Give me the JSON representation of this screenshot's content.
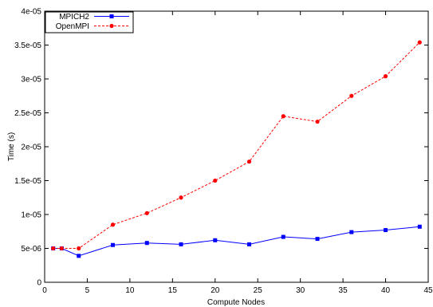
{
  "chart_data": {
    "type": "line",
    "title": "",
    "xlabel": "Compute Nodes",
    "ylabel": "Time (s)",
    "xlim": [
      0,
      45
    ],
    "ylim": [
      0,
      4e-05
    ],
    "grid": false,
    "legend_position": "top-left",
    "x_ticks": [
      0,
      5,
      10,
      15,
      20,
      25,
      30,
      35,
      40,
      45
    ],
    "x_tick_labels": [
      "0",
      "5",
      "10",
      "15",
      "20",
      "25",
      "30",
      "35",
      "40",
      "45"
    ],
    "y_ticks": [
      0,
      5e-06,
      1e-05,
      1.5e-05,
      2e-05,
      2.5e-05,
      3e-05,
      3.5e-05,
      4e-05
    ],
    "y_tick_labels": [
      "0",
      "5e-06",
      "1e-05",
      "1.5e-05",
      "2e-05",
      "2.5e-05",
      "3e-05",
      "3.5e-05",
      "4e-05"
    ],
    "series": [
      {
        "name": "MPICH2",
        "color": "#0000ff",
        "line_style": "solid",
        "marker": "square",
        "x": [
          1,
          2,
          4,
          8,
          12,
          16,
          20,
          24,
          28,
          32,
          36,
          40,
          44
        ],
        "y": [
          5e-06,
          5e-06,
          3.9e-06,
          5.5e-06,
          5.8e-06,
          5.6e-06,
          6.2e-06,
          5.6e-06,
          6.7e-06,
          6.4e-06,
          7.4e-06,
          7.7e-06,
          8.2e-06
        ]
      },
      {
        "name": "OpenMPI",
        "color": "#ff0000",
        "line_style": "dashed",
        "marker": "circle",
        "x": [
          1,
          2,
          4,
          8,
          12,
          16,
          20,
          24,
          28,
          32,
          36,
          40,
          44
        ],
        "y": [
          5e-06,
          5e-06,
          5e-06,
          8.5e-06,
          1.02e-05,
          1.25e-05,
          1.5e-05,
          1.78e-05,
          2.45e-05,
          2.37e-05,
          2.75e-05,
          3.04e-05,
          3.54e-05
        ]
      }
    ]
  }
}
